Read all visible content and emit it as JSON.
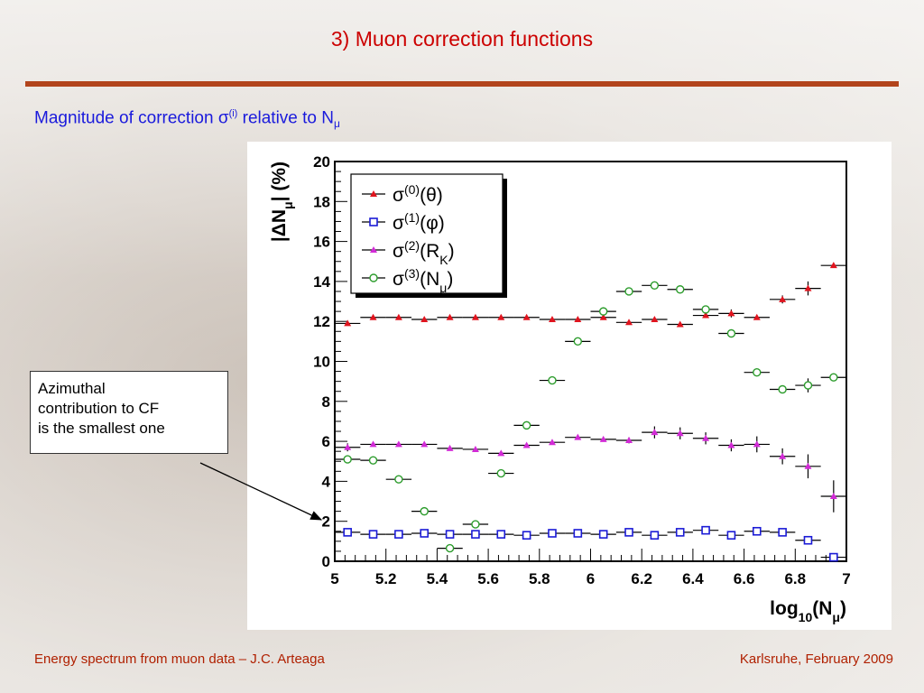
{
  "slide": {
    "title": "3) Muon correction functions",
    "subtitle_main": "Magnitude of correction σ",
    "subtitle_sup": "(i)",
    "subtitle_mid": " relative to N",
    "subtitle_sub": "μ",
    "callout_lines": [
      "Azimuthal",
      "contribution to CF",
      "is the smallest one"
    ],
    "footer_left": "Energy spectrum from muon data – J.C. Arteaga",
    "footer_right": "Karlsruhe,  February 2009",
    "colors": {
      "title": "#cc0000",
      "rule": "#b2441c",
      "subtitle": "#1a1adc",
      "footer": "#b02000"
    }
  },
  "chart_data": {
    "type": "scatter",
    "xlabel": "log10(Nμ)",
    "ylabel": "|ΔNμ| (%)",
    "xlim": [
      5,
      7
    ],
    "ylim": [
      0,
      20
    ],
    "x_ticks": [
      "5",
      "5.2",
      "5.4",
      "5.6",
      "5.8",
      "6",
      "6.2",
      "6.4",
      "6.6",
      "6.8",
      "7"
    ],
    "y_ticks": [
      "0",
      "2",
      "4",
      "6",
      "8",
      "10",
      "12",
      "14",
      "16",
      "18",
      "20"
    ],
    "x": [
      5.05,
      5.15,
      5.25,
      5.35,
      5.45,
      5.55,
      5.65,
      5.75,
      5.85,
      5.95,
      6.05,
      6.15,
      6.25,
      6.35,
      6.45,
      6.55,
      6.65,
      6.75,
      6.85,
      6.95
    ],
    "x_halfwidth": 0.05,
    "legend_position": "top-left",
    "series": [
      {
        "name": "σ(0)(θ)",
        "label_sup": "(0)",
        "label_arg": "(θ)",
        "color": "#e0141e",
        "marker": "triangle",
        "values": [
          11.9,
          12.2,
          12.2,
          12.1,
          12.2,
          12.2,
          12.2,
          12.2,
          12.1,
          12.1,
          12.2,
          11.95,
          12.1,
          11.85,
          12.3,
          12.4,
          12.2,
          13.1,
          13.65,
          14.8
        ],
        "errors": [
          0,
          0,
          0,
          0,
          0,
          0,
          0,
          0,
          0,
          0,
          0,
          0,
          0,
          0,
          0,
          0.2,
          0,
          0.2,
          0.35,
          0
        ]
      },
      {
        "name": "σ(1)(φ)",
        "label_sup": "(1)",
        "label_arg": "(φ)",
        "color": "#1b1bd6",
        "marker": "square",
        "values": [
          1.45,
          1.35,
          1.35,
          1.4,
          1.35,
          1.35,
          1.35,
          1.3,
          1.4,
          1.4,
          1.35,
          1.45,
          1.3,
          1.45,
          1.55,
          1.3,
          1.5,
          1.45,
          1.05,
          0.2
        ],
        "errors": [
          0,
          0,
          0,
          0,
          0,
          0,
          0,
          0,
          0,
          0,
          0,
          0,
          0,
          0,
          0,
          0,
          0,
          0,
          0,
          0
        ]
      },
      {
        "name": "σ(2)(RK)",
        "label_sup": "(2)",
        "label_arg": "(R",
        "label_sub": "K",
        "label_tail": ")",
        "color": "#d22bd6",
        "marker": "triangle",
        "values": [
          5.7,
          5.85,
          5.85,
          5.85,
          5.65,
          5.6,
          5.4,
          5.8,
          5.95,
          6.2,
          6.1,
          6.05,
          6.45,
          6.4,
          6.15,
          5.8,
          5.85,
          5.25,
          4.75,
          3.25
        ],
        "errors": [
          0.2,
          0,
          0,
          0,
          0,
          0,
          0,
          0,
          0,
          0,
          0,
          0.15,
          0.3,
          0.3,
          0.3,
          0.3,
          0.4,
          0.4,
          0.6,
          0.8
        ]
      },
      {
        "name": "σ(3)(Nμ)",
        "label_sup": "(3)",
        "label_arg": "(N",
        "label_sub": "μ",
        "label_tail": ")",
        "color": "#2c9c2c",
        "marker": "circle",
        "values": [
          5.1,
          5.05,
          4.1,
          2.5,
          0.65,
          1.85,
          4.4,
          6.8,
          9.05,
          11.0,
          12.5,
          13.5,
          13.8,
          13.6,
          12.6,
          11.4,
          9.45,
          8.6,
          8.8,
          9.2
        ],
        "errors": [
          0,
          0,
          0,
          0,
          0,
          0,
          0,
          0,
          0,
          0,
          0,
          0,
          0,
          0,
          0,
          0,
          0,
          0.2,
          0.35,
          0
        ]
      }
    ]
  }
}
